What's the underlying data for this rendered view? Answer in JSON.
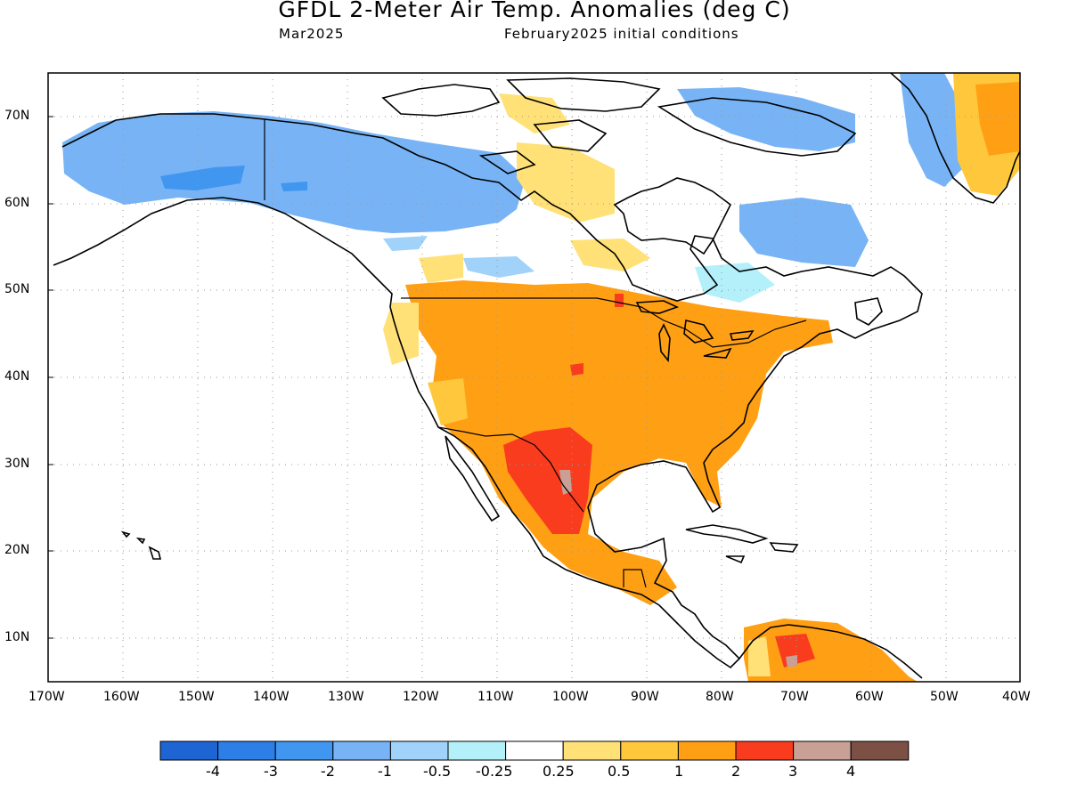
{
  "header": {
    "title": "GFDL 2-Meter Air Temp. Anomalies (deg C)",
    "valid_month": "Mar2025",
    "init_conditions": "February2025 initial conditions"
  },
  "map": {
    "lon_range": [
      -170,
      -40
    ],
    "lat_range": [
      5,
      75
    ],
    "lat_labels": [
      "10N",
      "20N",
      "30N",
      "40N",
      "50N",
      "60N",
      "70N"
    ],
    "lon_labels": [
      "170W",
      "160W",
      "150W",
      "140W",
      "130W",
      "120W",
      "110W",
      "100W",
      "90W",
      "80W",
      "70W",
      "60W",
      "50W",
      "40W"
    ],
    "grid": "dotted"
  },
  "colorbar": {
    "colors": [
      "#1e64d2",
      "#2d7ee6",
      "#4196f0",
      "#78b4f5",
      "#a0d2fa",
      "#b4f0fa",
      "#ffffff",
      "#ffe178",
      "#ffc83c",
      "#ffa014",
      "#fa3c1e",
      "#c8a096",
      "#7d5046"
    ],
    "labels": [
      "-4",
      "-3",
      "-2",
      "-1",
      "-0.5",
      "-0.25",
      "0.25",
      "0.5",
      "1",
      "2",
      "3",
      "4"
    ]
  }
}
